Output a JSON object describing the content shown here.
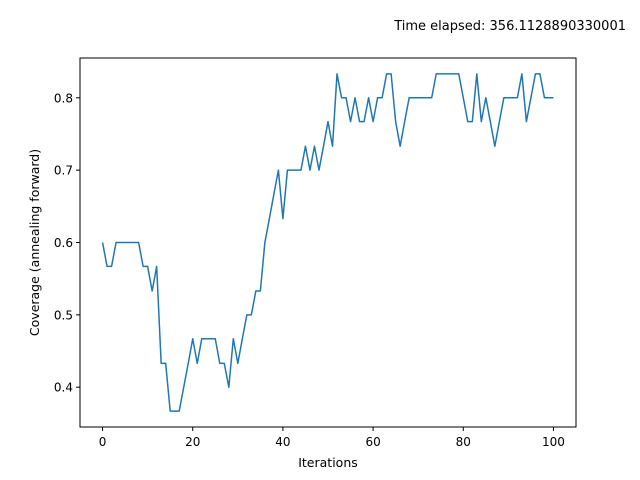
{
  "chart_data": {
    "type": "line",
    "title": "Time elapsed: 356.1128890330001",
    "xlabel": "Iterations",
    "ylabel": "Coverage (annealing forward)",
    "xlim": [
      -5,
      105
    ],
    "ylim": [
      0.345,
      0.855
    ],
    "xticks": [
      0,
      20,
      40,
      60,
      80,
      100
    ],
    "yticks": [
      0.4,
      0.5,
      0.6,
      0.7,
      0.8
    ],
    "xtick_labels": [
      "0",
      "20",
      "40",
      "60",
      "80",
      "100"
    ],
    "ytick_labels": [
      "0.4",
      "0.5",
      "0.6",
      "0.7",
      "0.8"
    ],
    "grid": false,
    "series": [
      {
        "color": "#1f77b4",
        "x": [
          0,
          1,
          2,
          3,
          4,
          5,
          6,
          7,
          8,
          9,
          10,
          11,
          12,
          13,
          14,
          15,
          16,
          17,
          18,
          19,
          20,
          21,
          22,
          23,
          24,
          25,
          26,
          27,
          28,
          29,
          30,
          31,
          32,
          33,
          34,
          35,
          36,
          37,
          38,
          39,
          40,
          41,
          42,
          43,
          44,
          45,
          46,
          47,
          48,
          49,
          50,
          51,
          52,
          53,
          54,
          55,
          56,
          57,
          58,
          59,
          60,
          61,
          62,
          63,
          64,
          65,
          66,
          67,
          68,
          69,
          70,
          71,
          72,
          73,
          74,
          75,
          76,
          77,
          78,
          79,
          80,
          81,
          82,
          83,
          84,
          85,
          86,
          87,
          88,
          89,
          90,
          91,
          92,
          93,
          94,
          95,
          96,
          97,
          98,
          99,
          100
        ],
        "y": [
          0.6,
          0.567,
          0.567,
          0.6,
          0.6,
          0.6,
          0.6,
          0.6,
          0.6,
          0.567,
          0.567,
          0.533,
          0.567,
          0.433,
          0.433,
          0.367,
          0.367,
          0.367,
          0.4,
          0.433,
          0.467,
          0.433,
          0.467,
          0.467,
          0.467,
          0.467,
          0.433,
          0.433,
          0.4,
          0.467,
          0.433,
          0.467,
          0.5,
          0.5,
          0.533,
          0.533,
          0.6,
          0.633,
          0.667,
          0.7,
          0.633,
          0.7,
          0.7,
          0.7,
          0.7,
          0.733,
          0.7,
          0.733,
          0.7,
          0.733,
          0.767,
          0.733,
          0.833,
          0.8,
          0.8,
          0.767,
          0.8,
          0.767,
          0.767,
          0.8,
          0.767,
          0.8,
          0.8,
          0.833,
          0.833,
          0.767,
          0.733,
          0.767,
          0.8,
          0.8,
          0.8,
          0.8,
          0.8,
          0.8,
          0.833,
          0.833,
          0.833,
          0.833,
          0.833,
          0.833,
          0.8,
          0.767,
          0.767,
          0.833,
          0.767,
          0.8,
          0.767,
          0.733,
          0.767,
          0.8,
          0.8,
          0.8,
          0.8,
          0.833,
          0.767,
          0.8,
          0.833,
          0.833,
          0.8,
          0.8,
          0.8
        ]
      }
    ]
  }
}
